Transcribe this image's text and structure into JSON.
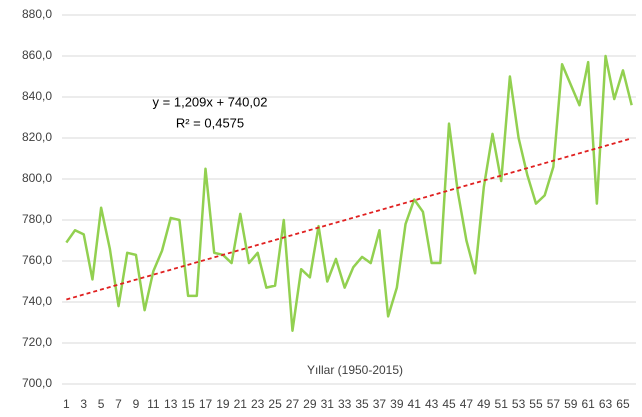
{
  "chart_data": {
    "type": "line",
    "x_label": "Yıllar (1950-2015)",
    "annotations": [
      "y = 1,209x + 740,02",
      "R² = 0,4575"
    ],
    "x": [
      1,
      2,
      3,
      4,
      5,
      6,
      7,
      8,
      9,
      10,
      11,
      12,
      13,
      14,
      15,
      16,
      17,
      18,
      19,
      20,
      21,
      22,
      23,
      24,
      25,
      26,
      27,
      28,
      29,
      30,
      31,
      32,
      33,
      34,
      35,
      36,
      37,
      38,
      39,
      40,
      41,
      42,
      43,
      44,
      45,
      46,
      47,
      48,
      49,
      50,
      51,
      52,
      53,
      54,
      55,
      56,
      57,
      58,
      59,
      60,
      61,
      62,
      63,
      64,
      65,
      66
    ],
    "series": [
      {
        "color": "#92d050",
        "values": [
          769,
          775,
          773,
          751,
          786,
          766,
          738,
          764,
          763,
          736,
          755,
          765,
          781,
          780,
          743,
          743,
          805,
          764,
          763,
          759,
          783,
          759,
          764,
          747,
          748,
          780,
          726,
          756,
          752,
          777,
          750,
          761,
          747,
          757,
          762,
          759,
          775,
          733,
          747,
          778,
          790,
          784,
          759,
          759,
          827,
          794,
          770,
          754,
          796,
          822,
          799,
          850,
          820,
          802,
          788,
          792,
          806,
          856,
          846,
          836,
          857,
          788,
          860,
          839,
          853,
          836
        ]
      }
    ],
    "trend": {
      "color": "#e02020",
      "x": [
        1,
        66
      ],
      "values": [
        741.23,
        819.81
      ]
    },
    "xlim": [
      0.5,
      66.5
    ],
    "xticks": [
      1,
      3,
      5,
      7,
      9,
      11,
      13,
      15,
      17,
      19,
      21,
      23,
      25,
      27,
      29,
      31,
      33,
      35,
      37,
      39,
      41,
      43,
      45,
      47,
      49,
      51,
      53,
      55,
      57,
      59,
      61,
      63,
      65
    ],
    "ylim": [
      700,
      880
    ],
    "yticks": [
      {
        "value": 700,
        "label": "700,0"
      },
      {
        "value": 720,
        "label": "720,0"
      },
      {
        "value": 740,
        "label": "740,0"
      },
      {
        "value": 760,
        "label": "760,0"
      },
      {
        "value": 780,
        "label": "780,0"
      },
      {
        "value": 800,
        "label": "800,0"
      },
      {
        "value": 820,
        "label": "820,0"
      },
      {
        "value": 840,
        "label": "840,0"
      },
      {
        "value": 860,
        "label": "860,0"
      },
      {
        "value": 880,
        "label": "880,0"
      }
    ],
    "grid": true
  }
}
